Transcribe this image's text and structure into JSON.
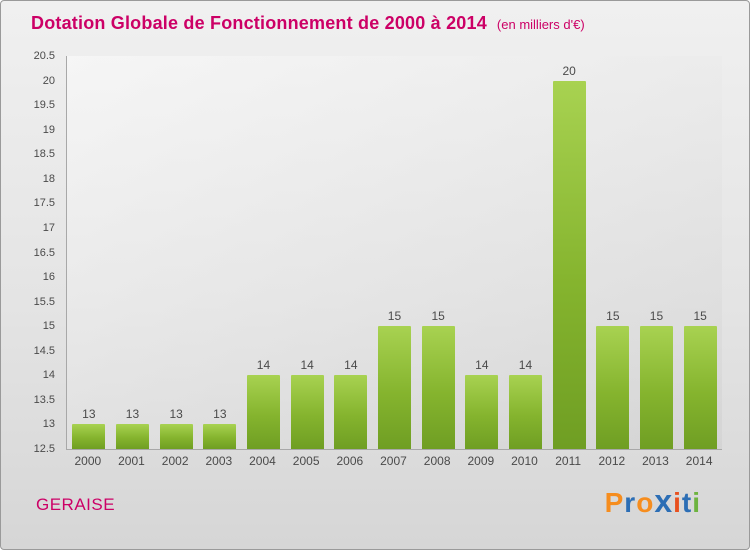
{
  "title": "Dotation Globale de Fonctionnement de 2000 à 2014",
  "subtitle": "(en milliers d'€)",
  "footer": {
    "name": "GERAISE"
  },
  "logo": {
    "letters": [
      {
        "char": "P",
        "color": "#F68D1E"
      },
      {
        "char": "r",
        "color": "#2C6EB5"
      },
      {
        "char": "o",
        "color": "#F68D1E"
      },
      {
        "char": "x",
        "color": "#2C6EB5"
      },
      {
        "char": "i",
        "color": "#E8501E"
      },
      {
        "char": "t",
        "color": "#2C6EB5"
      },
      {
        "char": "i",
        "color": "#6DB33F"
      }
    ]
  },
  "chart_data": {
    "type": "bar",
    "title": "Dotation Globale de Fonctionnement de 2000 à 2014 (en milliers d'€)",
    "categories": [
      "2000",
      "2001",
      "2002",
      "2003",
      "2004",
      "2005",
      "2006",
      "2007",
      "2008",
      "2009",
      "2010",
      "2011",
      "2012",
      "2013",
      "2014"
    ],
    "values": [
      13,
      13,
      13,
      13,
      14,
      14,
      14,
      15,
      15,
      14,
      14,
      20,
      15,
      15,
      15
    ],
    "xlabel": "",
    "ylabel": "",
    "ylim": [
      12.5,
      20.5
    ],
    "ytick_step": 0.5,
    "grid": false,
    "legend": false,
    "bar_color_top": "#a8d251",
    "bar_color_bottom": "#6f9e23",
    "accent_color": "#cc0066"
  }
}
